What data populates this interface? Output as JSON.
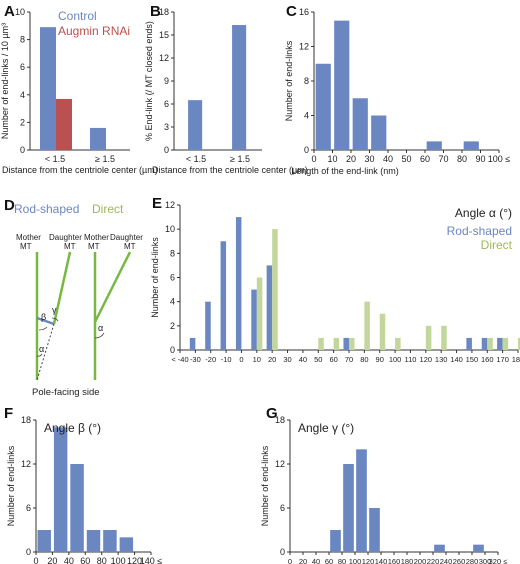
{
  "panels": {
    "A": {
      "letter": "A"
    },
    "B": {
      "letter": "B"
    },
    "C": {
      "letter": "C"
    },
    "D": {
      "letter": "D"
    },
    "E": {
      "letter": "E"
    },
    "F": {
      "letter": "F"
    },
    "G": {
      "letter": "G"
    }
  },
  "colors": {
    "blue": "#6A87C1",
    "red": "#B8514F",
    "green": "#C3D69B",
    "line_green": "#77B843",
    "axis": "#333333"
  },
  "diagram": {
    "legend_rod": "Rod-shaped",
    "legend_direct": "Direct",
    "mother_left": "Mother",
    "mt_left": "MT",
    "daughter_left": "Daughter",
    "mt_left2": "MT",
    "mother_right": "Mother",
    "mt_right": "MT",
    "daughter_right": "Daughter",
    "mt_right2": "MT",
    "beta": "β",
    "gamma": "γ",
    "alpha1": "α",
    "alpha2": "α",
    "bottom": "Pole-facing side"
  },
  "chart_data": [
    {
      "panel": "A",
      "type": "bar",
      "categories": [
        "< 1.5",
        "≥ 1.5"
      ],
      "series": [
        {
          "name": "Control",
          "values": [
            8.9,
            1.6
          ]
        },
        {
          "name": "Augmin RNAi",
          "values": [
            3.7,
            null
          ]
        }
      ],
      "ylabel": "Number of end-links / 10 µm³",
      "xlabel": "Distance from the centriole center (µm)",
      "ylim": [
        0,
        10
      ],
      "yticks": [
        "0",
        "2",
        "4",
        "6",
        "8",
        "10"
      ],
      "legend": "top-right"
    },
    {
      "panel": "B",
      "type": "bar",
      "categories": [
        "< 1.5",
        "≥ 1.5"
      ],
      "values": [
        6.5,
        16.3
      ],
      "ylabel": "% End-link (/ MT closed ends)",
      "xlabel": "Distance from the centriole center (µm)",
      "ylim": [
        0,
        18
      ],
      "yticks": [
        "0",
        "3",
        "6",
        "9",
        "12",
        "15",
        "18"
      ]
    },
    {
      "panel": "C",
      "type": "bar",
      "x": [
        10,
        20,
        30,
        40,
        50,
        60,
        70,
        80,
        90
      ],
      "values": [
        10,
        15,
        6,
        4,
        0,
        0,
        1,
        0,
        1
      ],
      "xticks": [
        "0",
        "10",
        "20",
        "30",
        "40",
        "50",
        "60",
        "70",
        "80",
        "90",
        "100 ≤"
      ],
      "ylabel": "Number of end-links",
      "xlabel": "Length of the end-link (nm)",
      "ylim": [
        0,
        16
      ],
      "yticks": [
        "0",
        "4",
        "8",
        "12",
        "16"
      ]
    },
    {
      "panel": "E",
      "type": "bar",
      "title": "Angle α (°)",
      "x": [
        -30,
        -20,
        -10,
        0,
        10,
        20,
        30,
        40,
        50,
        60,
        70,
        80,
        90,
        100,
        110,
        120,
        130,
        140,
        150,
        160,
        170,
        180
      ],
      "series": [
        {
          "name": "Rod-shaped",
          "values": [
            1,
            4,
            9,
            11,
            5,
            7,
            0,
            0,
            0,
            0,
            1,
            0,
            0,
            0,
            0,
            0,
            0,
            0,
            1,
            1,
            1,
            0
          ]
        },
        {
          "name": "Direct",
          "values": [
            0,
            0,
            0,
            0,
            6,
            10,
            0,
            0,
            1,
            1,
            1,
            4,
            3,
            1,
            0,
            2,
            2,
            0,
            0,
            1,
            1,
            1
          ]
        }
      ],
      "xticks": [
        "< -40",
        "-30",
        "-20",
        "-10",
        "0",
        "10",
        "20",
        "30",
        "40",
        "50",
        "60",
        "70",
        "80",
        "90",
        "100",
        "110",
        "120",
        "130",
        "140",
        "150",
        "160",
        "170",
        "180"
      ],
      "ylabel": "Number of end-links",
      "ylim": [
        0,
        12
      ],
      "yticks": [
        "0",
        "2",
        "4",
        "6",
        "8",
        "10",
        "12"
      ],
      "legend": "top-right"
    },
    {
      "panel": "F",
      "type": "bar",
      "title": "Angle β (°)",
      "x": [
        20,
        40,
        60,
        80,
        100,
        120
      ],
      "values": [
        3,
        17,
        12,
        3,
        3,
        2
      ],
      "xticks": [
        "0",
        "20",
        "40",
        "60",
        "80",
        "100",
        "120",
        "140 ≤"
      ],
      "ylabel": "Number of end-links",
      "ylim": [
        0,
        18
      ],
      "yticks": [
        "0",
        "6",
        "12",
        "18"
      ]
    },
    {
      "panel": "G",
      "type": "bar",
      "title": "Angle γ (°)",
      "x": [
        80,
        100,
        120,
        140,
        160,
        180,
        200,
        220,
        240,
        260,
        280,
        300
      ],
      "values": [
        3,
        12,
        14,
        6,
        0,
        0,
        0,
        0,
        1,
        0,
        0,
        1
      ],
      "xticks": [
        "0",
        "20",
        "40",
        "60",
        "80",
        "100",
        "120",
        "140",
        "160",
        "180",
        "200",
        "220",
        "240",
        "260",
        "280",
        "300",
        "320 ≤"
      ],
      "ylabel": "Number of end-links",
      "ylim": [
        0,
        18
      ],
      "yticks": [
        "0",
        "6",
        "12",
        "18"
      ]
    }
  ]
}
